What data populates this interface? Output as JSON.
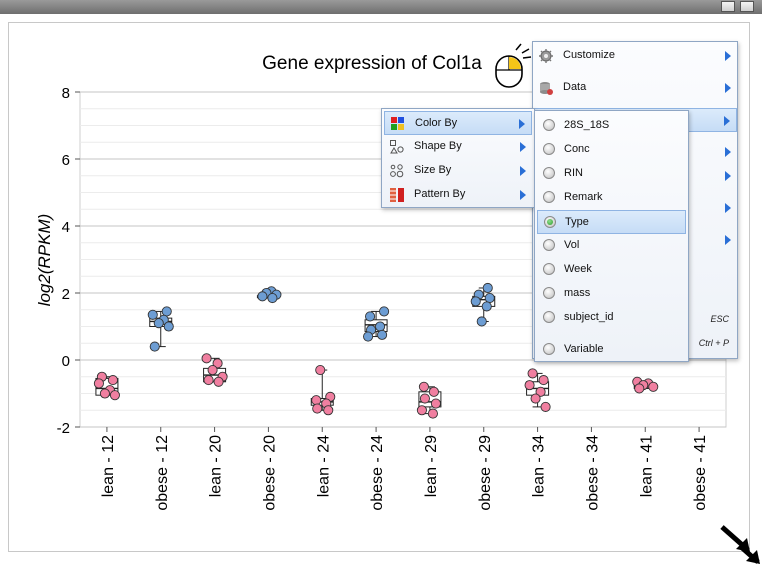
{
  "chart_data": {
    "type": "scatter",
    "title": "Gene expression of Col1a",
    "ylabel": "log2(RPKM)",
    "xlabel": "",
    "ylim": [
      -2,
      8
    ],
    "yticks": [
      8,
      6,
      4,
      2,
      0,
      -2
    ],
    "grid": true,
    "categories": [
      "lean - 12",
      "obese - 12",
      "lean - 20",
      "obese - 20",
      "lean - 24",
      "obese - 24",
      "lean - 29",
      "obese - 29",
      "lean - 34",
      "obese - 34",
      "lean - 41",
      "obese - 41"
    ],
    "groups": [
      "lean",
      "obese",
      "lean",
      "obese",
      "lean",
      "obese",
      "lean",
      "obese",
      "lean",
      "obese",
      "lean",
      "obese"
    ],
    "colors": {
      "lean": "#f07fa0",
      "obese": "#6d9dd3"
    },
    "points": [
      [
        -0.5,
        -0.6,
        -0.7,
        -0.9,
        -1.0,
        -1.05
      ],
      [
        1.45,
        1.35,
        1.2,
        1.1,
        1.0,
        0.4
      ],
      [
        0.05,
        -0.1,
        -0.3,
        -0.5,
        -0.6,
        -0.65
      ],
      [
        2.05,
        2.0,
        1.95,
        1.9,
        1.85
      ],
      [
        -0.3,
        -1.1,
        -1.2,
        -1.3,
        -1.45,
        -1.5
      ],
      [
        1.45,
        1.3,
        1.0,
        0.9,
        0.75,
        0.7
      ],
      [
        -0.8,
        -0.95,
        -1.15,
        -1.3,
        -1.5,
        -1.6
      ],
      [
        2.15,
        1.95,
        1.85,
        1.75,
        1.6,
        1.15
      ],
      [
        -0.4,
        -0.6,
        -0.75,
        -0.95,
        -1.15,
        -1.4
      ],
      [],
      [
        -0.65,
        -0.7,
        -0.75,
        -0.8,
        -0.85
      ],
      []
    ],
    "boxes": [
      {
        "q1": -1.05,
        "med": -0.85,
        "q3": -0.55,
        "lo": -1.05,
        "hi": -0.5
      },
      {
        "q1": 1.0,
        "med": 1.15,
        "q3": 1.25,
        "lo": 0.4,
        "hi": 1.45
      },
      {
        "q1": -0.65,
        "med": -0.45,
        "q3": -0.25,
        "lo": -0.65,
        "hi": 0.05
      },
      {
        "q1": 1.88,
        "med": 1.9,
        "q3": 1.92,
        "lo": 1.85,
        "hi": 2.05
      },
      {
        "q1": -1.35,
        "med": -1.25,
        "q3": -1.15,
        "lo": -1.5,
        "hi": -0.3
      },
      {
        "q1": 0.85,
        "med": 1.05,
        "q3": 1.2,
        "lo": 0.7,
        "hi": 1.45
      },
      {
        "q1": -1.4,
        "med": -1.25,
        "q3": -0.95,
        "lo": -1.6,
        "hi": -0.8
      },
      {
        "q1": 1.6,
        "med": 1.8,
        "q3": 1.9,
        "lo": 1.15,
        "hi": 2.15
      },
      {
        "q1": -1.05,
        "med": -0.85,
        "q3": -0.65,
        "lo": -1.4,
        "hi": -0.4
      },
      null,
      {
        "q1": -0.85,
        "med": -0.78,
        "q3": -0.7,
        "lo": -0.85,
        "hi": -0.65
      },
      null
    ]
  },
  "main_menu": {
    "items": [
      {
        "label": "Customize",
        "icon": "gear-icon",
        "shortcut": ""
      },
      {
        "label": "Data",
        "icon": "database-icon",
        "shortcut": ""
      },
      {
        "label": "",
        "icon": "",
        "shortcut": ""
      },
      {
        "label": "",
        "icon": "",
        "shortcut": ""
      },
      {
        "label": "",
        "icon": "",
        "shortcut": ""
      },
      {
        "label": "",
        "icon": "",
        "shortcut": ""
      },
      {
        "label": "",
        "icon": "",
        "shortcut": ""
      },
      {
        "label": "",
        "icon": "",
        "shortcut": ""
      },
      {
        "label": "",
        "icon": "",
        "shortcut": "ESC"
      },
      {
        "label": "",
        "icon": "",
        "shortcut": "Ctrl + P"
      }
    ]
  },
  "by_menu": {
    "items": [
      {
        "label": "Color By",
        "icon": "color-grid-icon"
      },
      {
        "label": "Shape By",
        "icon": "shapes-icon"
      },
      {
        "label": "Size By",
        "icon": "size-circles-icon"
      },
      {
        "label": "Pattern By",
        "icon": "pattern-icon"
      }
    ]
  },
  "attr_menu": {
    "selected": "Type",
    "items": [
      "28S_18S",
      "Conc",
      "RIN",
      "Remark",
      "Type",
      "Vol",
      "Week",
      "mass",
      "subject_id",
      "Variable"
    ]
  }
}
